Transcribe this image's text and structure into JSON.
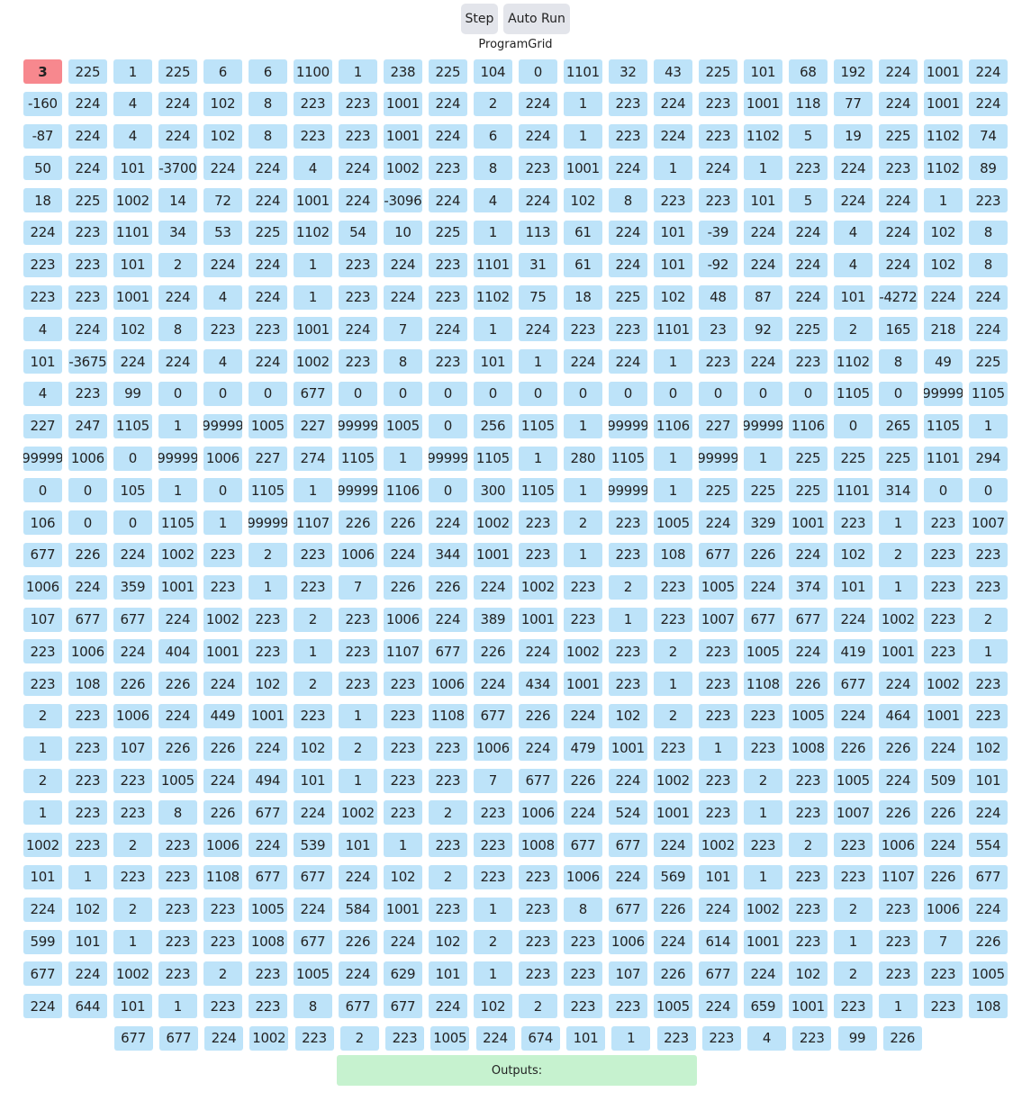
{
  "controls": {
    "step_label": "Step",
    "auto_label": "Auto Run"
  },
  "grid_title": "ProgramGrid",
  "active_index": 0,
  "rows": [
    [
      3,
      225,
      1,
      225,
      6,
      6,
      1100,
      1,
      238,
      225,
      104,
      0,
      1101,
      32,
      43,
      225,
      101,
      68,
      192,
      224,
      1001,
      224
    ],
    [
      -160,
      224,
      4,
      224,
      102,
      8,
      223,
      223,
      1001,
      224,
      2,
      224,
      1,
      223,
      224,
      223,
      1001,
      118,
      77,
      224,
      1001,
      224
    ],
    [
      -87,
      224,
      4,
      224,
      102,
      8,
      223,
      223,
      1001,
      224,
      6,
      224,
      1,
      223,
      224,
      223,
      1102,
      5,
      19,
      225,
      1102,
      74
    ],
    [
      50,
      224,
      101,
      -3700,
      224,
      224,
      4,
      224,
      1002,
      223,
      8,
      223,
      1001,
      224,
      1,
      224,
      1,
      223,
      224,
      223,
      1102,
      89
    ],
    [
      18,
      225,
      1002,
      14,
      72,
      224,
      1001,
      224,
      -3096,
      224,
      4,
      224,
      102,
      8,
      223,
      223,
      101,
      5,
      224,
      224,
      1,
      223
    ],
    [
      224,
      223,
      1101,
      34,
      53,
      225,
      1102,
      54,
      10,
      225,
      1,
      113,
      61,
      224,
      101,
      -39,
      224,
      224,
      4,
      224,
      102,
      8
    ],
    [
      223,
      223,
      101,
      2,
      224,
      224,
      1,
      223,
      224,
      223,
      1101,
      31,
      61,
      224,
      101,
      -92,
      224,
      224,
      4,
      224,
      102,
      8
    ],
    [
      223,
      223,
      1001,
      224,
      4,
      224,
      1,
      223,
      224,
      223,
      1102,
      75,
      18,
      225,
      102,
      48,
      87,
      224,
      101,
      -4272,
      224,
      224
    ],
    [
      4,
      224,
      102,
      8,
      223,
      223,
      1001,
      224,
      7,
      224,
      1,
      224,
      223,
      223,
      1101,
      23,
      92,
      225,
      2,
      165,
      218,
      224
    ],
    [
      101,
      -3675,
      224,
      224,
      4,
      224,
      1002,
      223,
      8,
      223,
      101,
      1,
      224,
      224,
      1,
      223,
      224,
      223,
      1102,
      8,
      49,
      225
    ],
    [
      4,
      223,
      99,
      0,
      0,
      0,
      677,
      0,
      0,
      0,
      0,
      0,
      0,
      0,
      0,
      0,
      0,
      0,
      1105,
      0,
      99999,
      1105
    ],
    [
      227,
      247,
      1105,
      1,
      99999,
      1005,
      227,
      99999,
      1005,
      0,
      256,
      1105,
      1,
      99999,
      1106,
      227,
      99999,
      1106,
      0,
      265,
      1105,
      1
    ],
    [
      99999,
      1006,
      0,
      99999,
      1006,
      227,
      274,
      1105,
      1,
      99999,
      1105,
      1,
      280,
      1105,
      1,
      99999,
      1,
      225,
      225,
      225,
      1101,
      294
    ],
    [
      0,
      0,
      105,
      1,
      0,
      1105,
      1,
      99999,
      1106,
      0,
      300,
      1105,
      1,
      99999,
      1,
      225,
      225,
      225,
      1101,
      314,
      0,
      0
    ],
    [
      106,
      0,
      0,
      1105,
      1,
      99999,
      1107,
      226,
      226,
      224,
      1002,
      223,
      2,
      223,
      1005,
      224,
      329,
      1001,
      223,
      1,
      223,
      1007
    ],
    [
      677,
      226,
      224,
      1002,
      223,
      2,
      223,
      1006,
      224,
      344,
      1001,
      223,
      1,
      223,
      108,
      677,
      226,
      224,
      102,
      2,
      223,
      223
    ],
    [
      1006,
      224,
      359,
      1001,
      223,
      1,
      223,
      7,
      226,
      226,
      224,
      1002,
      223,
      2,
      223,
      1005,
      224,
      374,
      101,
      1,
      223,
      223
    ],
    [
      107,
      677,
      677,
      224,
      1002,
      223,
      2,
      223,
      1006,
      224,
      389,
      1001,
      223,
      1,
      223,
      1007,
      677,
      677,
      224,
      1002,
      223,
      2
    ],
    [
      223,
      1006,
      224,
      404,
      1001,
      223,
      1,
      223,
      1107,
      677,
      226,
      224,
      1002,
      223,
      2,
      223,
      1005,
      224,
      419,
      1001,
      223,
      1
    ],
    [
      223,
      108,
      226,
      226,
      224,
      102,
      2,
      223,
      223,
      1006,
      224,
      434,
      1001,
      223,
      1,
      223,
      1108,
      226,
      677,
      224,
      1002,
      223
    ],
    [
      2,
      223,
      1006,
      224,
      449,
      1001,
      223,
      1,
      223,
      1108,
      677,
      226,
      224,
      102,
      2,
      223,
      223,
      1005,
      224,
      464,
      1001,
      223
    ],
    [
      1,
      223,
      107,
      226,
      226,
      224,
      102,
      2,
      223,
      223,
      1006,
      224,
      479,
      1001,
      223,
      1,
      223,
      1008,
      226,
      226,
      224,
      102
    ],
    [
      2,
      223,
      223,
      1005,
      224,
      494,
      101,
      1,
      223,
      223,
      7,
      677,
      226,
      224,
      1002,
      223,
      2,
      223,
      1005,
      224,
      509,
      101
    ],
    [
      1,
      223,
      223,
      8,
      226,
      677,
      224,
      1002,
      223,
      2,
      223,
      1006,
      224,
      524,
      1001,
      223,
      1,
      223,
      1007,
      226,
      226,
      224
    ],
    [
      1002,
      223,
      2,
      223,
      1006,
      224,
      539,
      101,
      1,
      223,
      223,
      1008,
      677,
      677,
      224,
      1002,
      223,
      2,
      223,
      1006,
      224,
      554
    ],
    [
      101,
      1,
      223,
      223,
      1108,
      677,
      677,
      224,
      102,
      2,
      223,
      223,
      1006,
      224,
      569,
      101,
      1,
      223,
      223,
      1107,
      226,
      677
    ],
    [
      224,
      102,
      2,
      223,
      223,
      1005,
      224,
      584,
      1001,
      223,
      1,
      223,
      8,
      677,
      226,
      224,
      1002,
      223,
      2,
      223,
      1006,
      224
    ],
    [
      599,
      101,
      1,
      223,
      223,
      1008,
      677,
      226,
      224,
      102,
      2,
      223,
      223,
      1006,
      224,
      614,
      1001,
      223,
      1,
      223,
      7,
      226
    ],
    [
      677,
      224,
      1002,
      223,
      2,
      223,
      1005,
      224,
      629,
      101,
      1,
      223,
      223,
      107,
      226,
      677,
      224,
      102,
      2,
      223,
      223,
      1005
    ],
    [
      224,
      644,
      101,
      1,
      223,
      223,
      8,
      677,
      677,
      224,
      102,
      2,
      223,
      223,
      1005,
      224,
      659,
      1001,
      223,
      1,
      223,
      108
    ],
    [
      677,
      677,
      224,
      1002,
      223,
      2,
      223,
      1005,
      224,
      674,
      101,
      1,
      223,
      223,
      4,
      223,
      99,
      226
    ]
  ],
  "outputs_label": "Outputs:"
}
